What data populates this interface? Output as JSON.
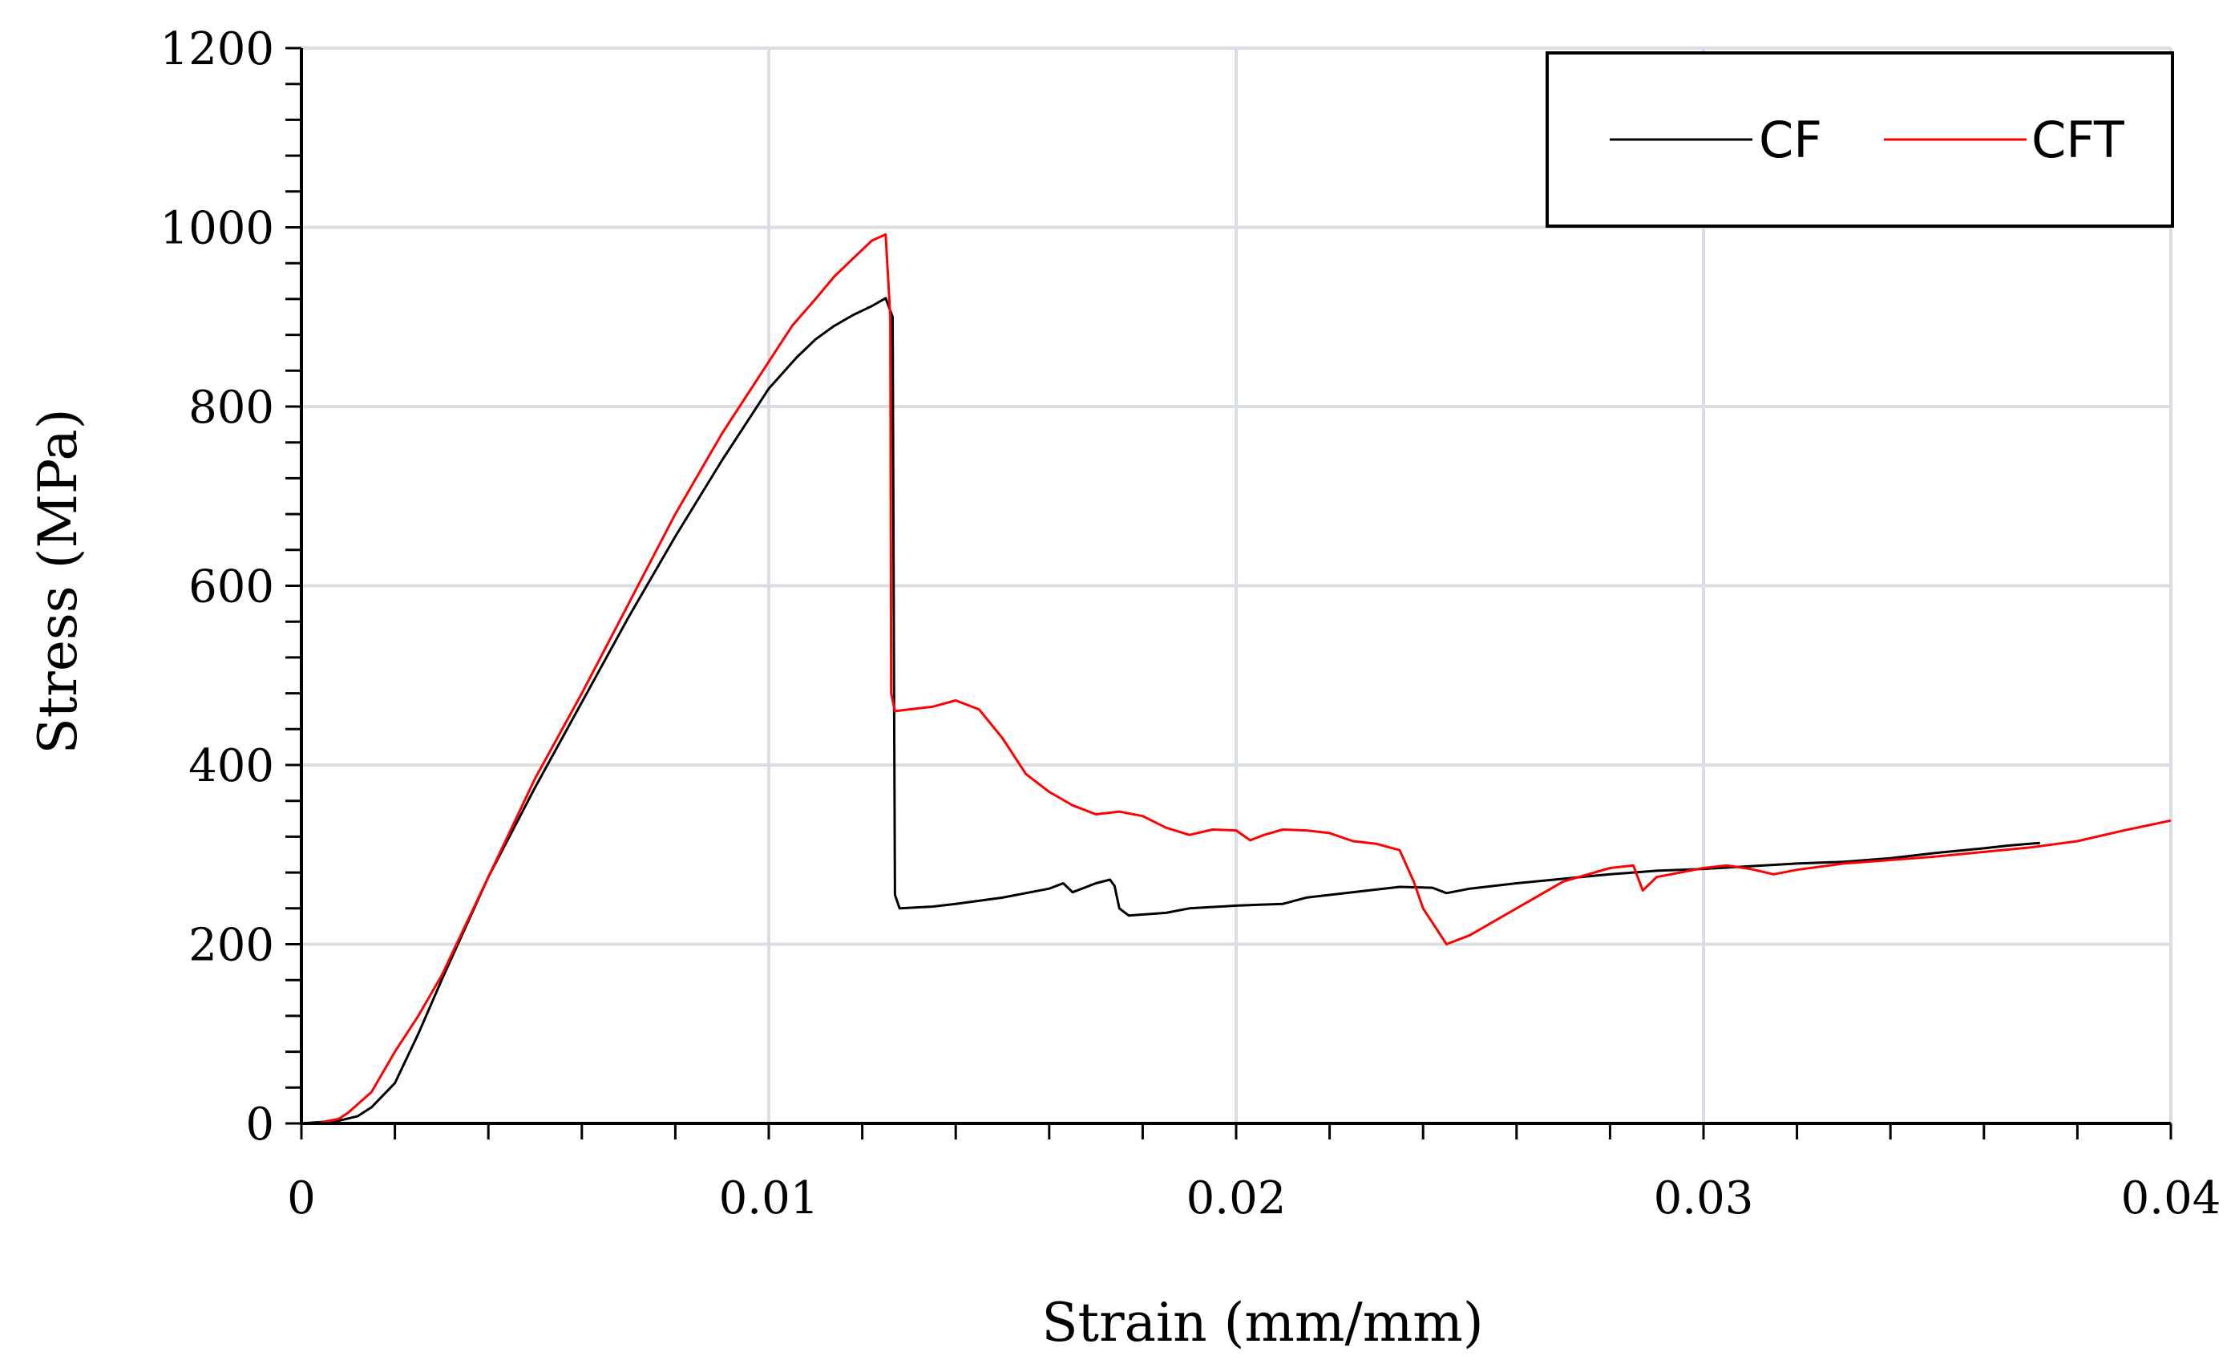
{
  "chart_data": {
    "type": "line",
    "title": "",
    "xlabel": "Strain (mm/mm)",
    "ylabel": "Stress (MPa)",
    "xlim": [
      0,
      0.04
    ],
    "ylim": [
      0,
      1200
    ],
    "xticks": [
      0,
      0.01,
      0.02,
      0.03,
      0.04
    ],
    "xtick_labels": [
      "0",
      "0.01",
      "0.02",
      "0.03",
      "0.04"
    ],
    "yticks": [
      0,
      200,
      400,
      600,
      800,
      1000,
      1200
    ],
    "ytick_labels": [
      "0",
      "200",
      "400",
      "600",
      "800",
      "1000",
      "1200"
    ],
    "grid": true,
    "legend_position": "top-right",
    "series": [
      {
        "name": "CF",
        "color": "#000000",
        "points": [
          [
            0.0,
            0
          ],
          [
            0.0008,
            3
          ],
          [
            0.0012,
            8
          ],
          [
            0.0015,
            18
          ],
          [
            0.002,
            45
          ],
          [
            0.0025,
            100
          ],
          [
            0.003,
            160
          ],
          [
            0.004,
            275
          ],
          [
            0.005,
            375
          ],
          [
            0.006,
            470
          ],
          [
            0.007,
            565
          ],
          [
            0.008,
            655
          ],
          [
            0.009,
            740
          ],
          [
            0.01,
            820
          ],
          [
            0.0106,
            855
          ],
          [
            0.011,
            875
          ],
          [
            0.0114,
            890
          ],
          [
            0.0118,
            902
          ],
          [
            0.0122,
            912
          ],
          [
            0.0125,
            921
          ],
          [
            0.01265,
            900
          ],
          [
            0.01268,
            500
          ],
          [
            0.0127,
            255
          ],
          [
            0.0128,
            240
          ],
          [
            0.0135,
            242
          ],
          [
            0.014,
            245
          ],
          [
            0.015,
            252
          ],
          [
            0.016,
            262
          ],
          [
            0.0163,
            268
          ],
          [
            0.0165,
            258
          ],
          [
            0.017,
            268
          ],
          [
            0.0173,
            272
          ],
          [
            0.0174,
            265
          ],
          [
            0.0175,
            240
          ],
          [
            0.0177,
            232
          ],
          [
            0.0185,
            235
          ],
          [
            0.019,
            240
          ],
          [
            0.02,
            243
          ],
          [
            0.0205,
            244
          ],
          [
            0.021,
            245
          ],
          [
            0.0215,
            252
          ],
          [
            0.022,
            255
          ],
          [
            0.0235,
            264
          ],
          [
            0.0242,
            263
          ],
          [
            0.0245,
            257
          ],
          [
            0.025,
            262
          ],
          [
            0.026,
            268
          ],
          [
            0.027,
            273
          ],
          [
            0.028,
            278
          ],
          [
            0.029,
            282
          ],
          [
            0.03,
            284
          ],
          [
            0.031,
            287
          ],
          [
            0.032,
            290
          ],
          [
            0.033,
            292
          ],
          [
            0.034,
            296
          ],
          [
            0.035,
            302
          ],
          [
            0.036,
            307
          ],
          [
            0.0365,
            310
          ],
          [
            0.0372,
            313
          ]
        ]
      },
      {
        "name": "CFT",
        "color": "#ff0000",
        "points": [
          [
            0.0003,
            0
          ],
          [
            0.0008,
            5
          ],
          [
            0.001,
            12
          ],
          [
            0.0015,
            35
          ],
          [
            0.002,
            80
          ],
          [
            0.0025,
            120
          ],
          [
            0.003,
            165
          ],
          [
            0.004,
            275
          ],
          [
            0.005,
            385
          ],
          [
            0.006,
            480
          ],
          [
            0.007,
            580
          ],
          [
            0.008,
            680
          ],
          [
            0.009,
            770
          ],
          [
            0.01,
            850
          ],
          [
            0.0105,
            890
          ],
          [
            0.011,
            920
          ],
          [
            0.0114,
            945
          ],
          [
            0.0118,
            965
          ],
          [
            0.0122,
            985
          ],
          [
            0.0125,
            992
          ],
          [
            0.0126,
            900
          ],
          [
            0.01262,
            480
          ],
          [
            0.0127,
            460
          ],
          [
            0.013,
            462
          ],
          [
            0.0135,
            465
          ],
          [
            0.014,
            472
          ],
          [
            0.0145,
            462
          ],
          [
            0.015,
            430
          ],
          [
            0.0155,
            390
          ],
          [
            0.016,
            370
          ],
          [
            0.0165,
            355
          ],
          [
            0.017,
            345
          ],
          [
            0.0175,
            348
          ],
          [
            0.018,
            343
          ],
          [
            0.0185,
            330
          ],
          [
            0.019,
            322
          ],
          [
            0.0195,
            328
          ],
          [
            0.02,
            327
          ],
          [
            0.0203,
            316
          ],
          [
            0.0206,
            322
          ],
          [
            0.021,
            328
          ],
          [
            0.0215,
            327
          ],
          [
            0.022,
            324
          ],
          [
            0.0225,
            315
          ],
          [
            0.023,
            312
          ],
          [
            0.0235,
            305
          ],
          [
            0.0238,
            270
          ],
          [
            0.024,
            240
          ],
          [
            0.0245,
            200
          ],
          [
            0.025,
            210
          ],
          [
            0.026,
            240
          ],
          [
            0.027,
            270
          ],
          [
            0.028,
            285
          ],
          [
            0.0285,
            288
          ],
          [
            0.0287,
            260
          ],
          [
            0.029,
            275
          ],
          [
            0.03,
            285
          ],
          [
            0.0305,
            288
          ],
          [
            0.031,
            284
          ],
          [
            0.0315,
            278
          ],
          [
            0.032,
            283
          ],
          [
            0.033,
            290
          ],
          [
            0.034,
            294
          ],
          [
            0.035,
            298
          ],
          [
            0.036,
            303
          ],
          [
            0.037,
            308
          ],
          [
            0.038,
            315
          ],
          [
            0.039,
            327
          ],
          [
            0.04,
            338
          ]
        ]
      }
    ]
  }
}
